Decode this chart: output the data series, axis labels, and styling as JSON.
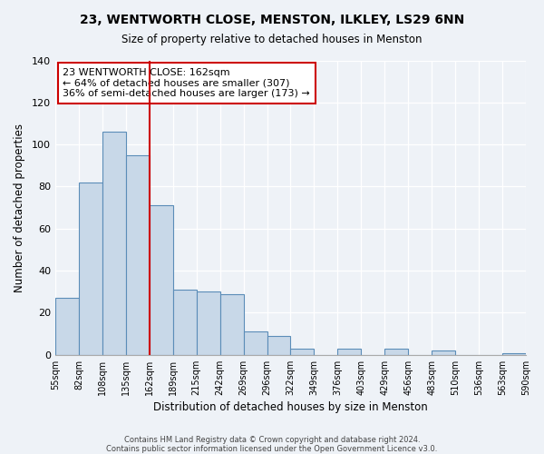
{
  "title": "23, WENTWORTH CLOSE, MENSTON, ILKLEY, LS29 6NN",
  "subtitle": "Size of property relative to detached houses in Menston",
  "xlabel": "Distribution of detached houses by size in Menston",
  "ylabel": "Number of detached properties",
  "bin_labels": [
    "55sqm",
    "82sqm",
    "108sqm",
    "135sqm",
    "162sqm",
    "189sqm",
    "215sqm",
    "242sqm",
    "269sqm",
    "296sqm",
    "322sqm",
    "349sqm",
    "376sqm",
    "403sqm",
    "429sqm",
    "456sqm",
    "483sqm",
    "510sqm",
    "536sqm",
    "563sqm",
    "590sqm"
  ],
  "bar_heights": [
    27,
    82,
    106,
    95,
    71,
    31,
    30,
    29,
    11,
    9,
    3,
    0,
    3,
    0,
    3,
    0,
    2,
    0,
    0,
    1
  ],
  "bar_color": "#c8d8e8",
  "bar_edge_color": "#5b8db8",
  "vline_x": 4,
  "vline_color": "#cc0000",
  "annotation_text": "23 WENTWORTH CLOSE: 162sqm\n← 64% of detached houses are smaller (307)\n36% of semi-detached houses are larger (173) →",
  "annotation_box_color": "#cc0000",
  "ylim": [
    0,
    140
  ],
  "yticks": [
    0,
    20,
    40,
    60,
    80,
    100,
    120,
    140
  ],
  "footnote1": "Contains HM Land Registry data © Crown copyright and database right 2024.",
  "footnote2": "Contains public sector information licensed under the Open Government Licence v3.0.",
  "background_color": "#eef2f7",
  "grid_color": "#ffffff"
}
